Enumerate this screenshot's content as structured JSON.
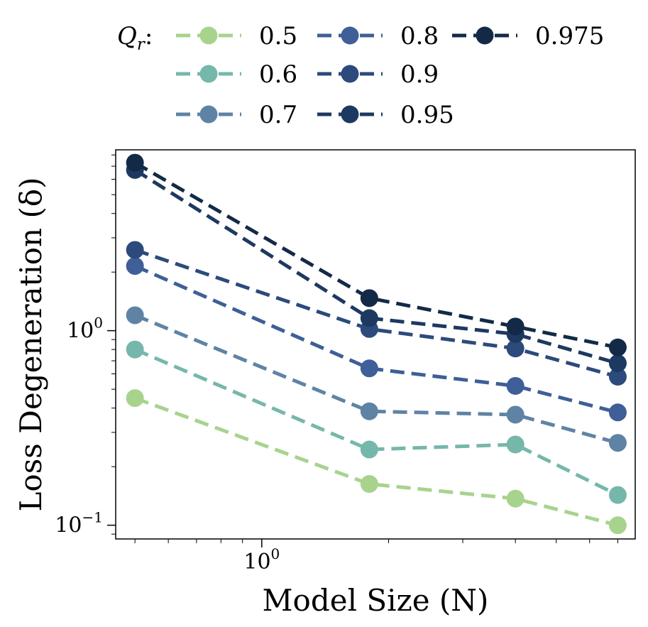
{
  "chart_data": {
    "type": "line",
    "xscale": "log",
    "yscale": "log",
    "x": [
      0.5,
      1.8,
      4.0,
      7.0
    ],
    "xlim": [
      0.45,
      7.7
    ],
    "ylim": [
      0.085,
      8.5
    ],
    "xlabel": "Model Size (N)",
    "ylabel": "Loss Degeneration (δ)",
    "x_ticks": [
      {
        "value": 1,
        "base": "10",
        "exp": "0"
      }
    ],
    "y_ticks": [
      {
        "value": 1,
        "base": "10",
        "exp": "0"
      },
      {
        "value": 0.1,
        "base": "10",
        "exp": "−1"
      }
    ],
    "legend_title": "Q",
    "legend_title_sub": "r",
    "legend_title_suffix": ":",
    "series": [
      {
        "name": "0.5",
        "color": "#a8d38d",
        "values": [
          0.45,
          0.163,
          0.137,
          0.1
        ]
      },
      {
        "name": "0.6",
        "color": "#76b7ab",
        "values": [
          0.8,
          0.245,
          0.26,
          0.143
        ]
      },
      {
        "name": "0.7",
        "color": "#5f83a4",
        "values": [
          1.2,
          0.385,
          0.37,
          0.265
        ]
      },
      {
        "name": "0.8",
        "color": "#3e5f97",
        "values": [
          2.15,
          0.64,
          0.52,
          0.38
        ]
      },
      {
        "name": "0.9",
        "color": "#2c4a7c",
        "values": [
          2.6,
          1.02,
          0.81,
          0.58
        ]
      },
      {
        "name": "0.95",
        "color": "#1e3961",
        "values": [
          6.7,
          1.16,
          0.96,
          0.68
        ]
      },
      {
        "name": "0.975",
        "color": "#132a47",
        "values": [
          7.3,
          1.47,
          1.05,
          0.82
        ]
      }
    ]
  }
}
